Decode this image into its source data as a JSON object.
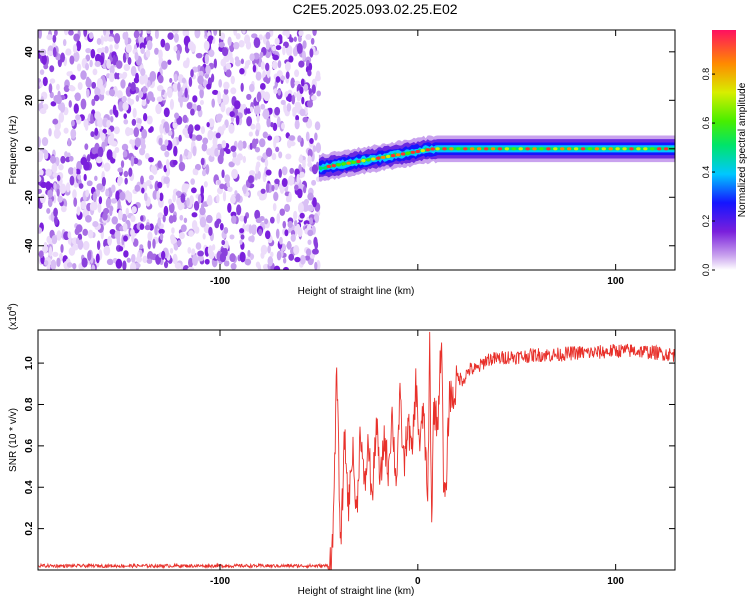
{
  "title": "C2E5.2025.093.02.25.E02",
  "chart_data": [
    {
      "type": "heatmap",
      "xlabel": "Height of straight line (km)",
      "ylabel": "Frequency (Hz)",
      "xlim": [
        -192,
        130
      ],
      "ylim": [
        -50,
        49
      ],
      "xticks": [
        -100,
        0,
        100
      ],
      "xtick_labels": [
        "-100",
        "",
        "100"
      ],
      "yticks": [
        -40,
        -20,
        0,
        20,
        40
      ],
      "ytick_labels": [
        "-40",
        "-20",
        "0",
        "20",
        "40"
      ],
      "colorbar": {
        "label": "Normalized spectral amplitude",
        "range": [
          0,
          0.98
        ],
        "ticks": [
          0.0,
          0.2,
          0.4,
          0.6,
          0.8
        ],
        "tick_labels": [
          "0.0",
          "0.2",
          "0.4",
          "0.6",
          "0.8"
        ]
      },
      "regions": [
        {
          "description": "diffuse low-amplitude speckle",
          "x": [
            -192,
            -50
          ],
          "freq": [
            -50,
            49
          ],
          "amplitude": [
            0.0,
            0.2
          ]
        },
        {
          "description": "narrow band rising from ~-8 Hz to 0 Hz",
          "x": [
            -50,
            8
          ],
          "freq_center": [
            -8,
            0
          ],
          "amplitude": [
            0.2,
            0.8
          ]
        },
        {
          "description": "steady narrow band at 0 Hz",
          "x": [
            8,
            130
          ],
          "freq_center": [
            0,
            0
          ],
          "amplitude": [
            0.3,
            0.98
          ]
        }
      ]
    },
    {
      "type": "line",
      "xlabel": "Height of straight line (km)",
      "ylabel": "SNR (10 * v/v)",
      "y_multiplier_label": "(x10",
      "y_multiplier_exp": "4",
      "xlim": [
        -192,
        130
      ],
      "ylim": [
        0,
        1.16
      ],
      "xticks": [
        -100,
        0,
        100
      ],
      "xtick_labels": [
        "-100",
        "0",
        "100"
      ],
      "yticks": [
        0.2,
        0.4,
        0.6,
        0.8,
        1.0
      ],
      "ytick_labels": [
        "0.2",
        "0.4",
        "0.6",
        "0.8",
        "1.0"
      ],
      "color": "#e8312b",
      "series": [
        {
          "x": [
            -192,
            -150,
            -100,
            -60,
            -45,
            -43,
            -41,
            -39,
            -37,
            -35,
            -33,
            -31,
            -29,
            -27,
            -25,
            -23,
            -21,
            -19,
            -17,
            -15,
            -13,
            -11,
            -9,
            -7,
            -5,
            -3,
            -1,
            1,
            3,
            5,
            6,
            7,
            8,
            10,
            12,
            13,
            14,
            16,
            18,
            20,
            23,
            26,
            30,
            35,
            40,
            45,
            50,
            60,
            70,
            80,
            90,
            100,
            110,
            120,
            130
          ],
          "y": [
            0.02,
            0.02,
            0.02,
            0.02,
            0.02,
            0.12,
            0.96,
            0.1,
            0.65,
            0.3,
            0.6,
            0.25,
            0.7,
            0.38,
            0.62,
            0.33,
            0.73,
            0.4,
            0.65,
            0.48,
            0.75,
            0.42,
            0.82,
            0.5,
            0.72,
            0.55,
            0.9,
            0.6,
            0.78,
            0.3,
            1.1,
            0.22,
            0.8,
            0.7,
            1.15,
            0.4,
            0.33,
            0.86,
            0.82,
            0.93,
            0.92,
            0.97,
            0.97,
            1.02,
            1.02,
            1.03,
            1.03,
            1.04,
            1.04,
            1.05,
            1.05,
            1.06,
            1.06,
            1.05,
            1.04
          ]
        }
      ]
    }
  ]
}
